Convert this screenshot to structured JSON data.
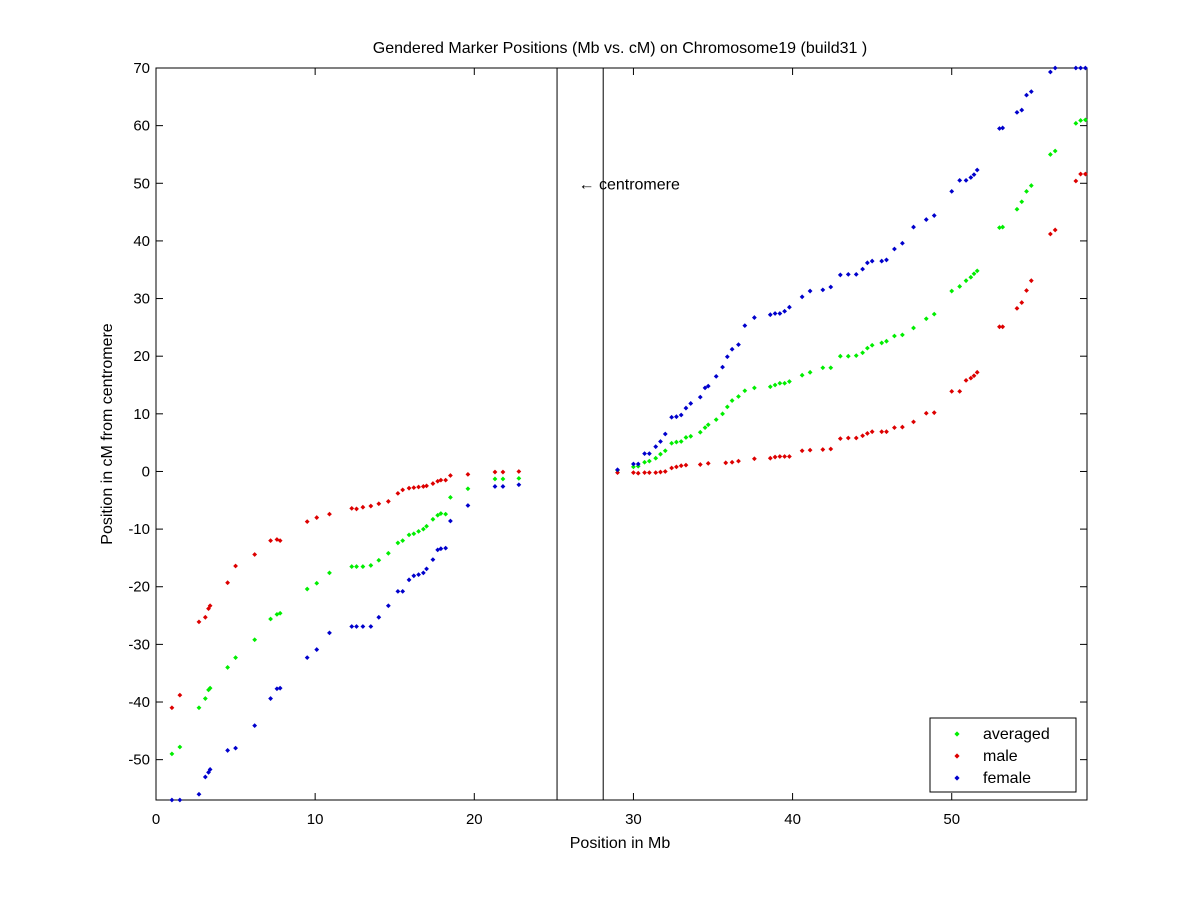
{
  "chart_data": {
    "type": "scatter",
    "title": "Gendered Marker Positions (Mb vs. cM) on Chromosome19 (build31 )",
    "xlabel": "Position in Mb",
    "ylabel": "Position in cM from centromere",
    "xlim": [
      0,
      58.5
    ],
    "ylim": [
      -57,
      70
    ],
    "xticks": [
      0,
      10,
      20,
      30,
      40,
      50
    ],
    "yticks": [
      -50,
      -40,
      -30,
      -20,
      -10,
      0,
      10,
      20,
      30,
      40,
      50,
      60,
      70
    ],
    "grid": false,
    "legend_position": "bottom-right",
    "centromere": {
      "x_start": 25.2,
      "x_end": 28.1,
      "label": "← centromere",
      "label_x": 26.8,
      "label_y": 50
    },
    "series": [
      {
        "name": "averaged",
        "color": "#00ee00",
        "points": [
          [
            1.0,
            -49
          ],
          [
            1.5,
            -47.8
          ],
          [
            2.7,
            -41
          ],
          [
            3.1,
            -39.4
          ],
          [
            3.3,
            -37.9
          ],
          [
            3.4,
            -37.6
          ],
          [
            4.5,
            -34
          ],
          [
            5.0,
            -32.3
          ],
          [
            6.2,
            -29.2
          ],
          [
            7.2,
            -25.6
          ],
          [
            7.6,
            -24.8
          ],
          [
            7.8,
            -24.6
          ],
          [
            9.5,
            -20.4
          ],
          [
            10.1,
            -19.4
          ],
          [
            10.9,
            -17.6
          ],
          [
            12.3,
            -16.5
          ],
          [
            12.6,
            -16.5
          ],
          [
            13.0,
            -16.5
          ],
          [
            13.5,
            -16.3
          ],
          [
            14.0,
            -15.4
          ],
          [
            14.6,
            -14.2
          ],
          [
            15.2,
            -12.4
          ],
          [
            15.5,
            -12.0
          ],
          [
            15.9,
            -11.0
          ],
          [
            16.2,
            -10.8
          ],
          [
            16.5,
            -10.4
          ],
          [
            16.8,
            -10.0
          ],
          [
            17.0,
            -9.5
          ],
          [
            17.4,
            -8.3
          ],
          [
            17.7,
            -7.6
          ],
          [
            17.9,
            -7.3
          ],
          [
            18.2,
            -7.4
          ],
          [
            18.5,
            -4.5
          ],
          [
            19.6,
            -3.0
          ],
          [
            21.3,
            -1.3
          ],
          [
            21.8,
            -1.3
          ],
          [
            22.8,
            -1.2
          ],
          [
            29.0,
            0.2
          ],
          [
            30.0,
            0.8
          ],
          [
            30.3,
            0.9
          ],
          [
            30.7,
            1.6
          ],
          [
            31.0,
            1.8
          ],
          [
            31.4,
            2.3
          ],
          [
            31.7,
            3.0
          ],
          [
            32.0,
            3.6
          ],
          [
            32.4,
            4.9
          ],
          [
            32.7,
            5.1
          ],
          [
            33.0,
            5.2
          ],
          [
            33.3,
            5.9
          ],
          [
            33.6,
            6.1
          ],
          [
            34.2,
            6.8
          ],
          [
            34.5,
            7.6
          ],
          [
            34.7,
            8.1
          ],
          [
            35.2,
            9.0
          ],
          [
            35.6,
            10.0
          ],
          [
            35.9,
            11.2
          ],
          [
            36.2,
            12.3
          ],
          [
            36.6,
            13.0
          ],
          [
            37.0,
            14.0
          ],
          [
            37.6,
            14.5
          ],
          [
            38.6,
            14.7
          ],
          [
            38.9,
            15.0
          ],
          [
            39.2,
            15.3
          ],
          [
            39.5,
            15.3
          ],
          [
            39.8,
            15.6
          ],
          [
            40.6,
            16.7
          ],
          [
            41.1,
            17.2
          ],
          [
            41.9,
            18.0
          ],
          [
            42.4,
            18.0
          ],
          [
            43.0,
            20.0
          ],
          [
            43.5,
            20.0
          ],
          [
            44.0,
            20.1
          ],
          [
            44.4,
            20.6
          ],
          [
            44.7,
            21.4
          ],
          [
            45.0,
            21.9
          ],
          [
            45.6,
            22.3
          ],
          [
            45.9,
            22.6
          ],
          [
            46.4,
            23.5
          ],
          [
            46.9,
            23.7
          ],
          [
            47.6,
            24.9
          ],
          [
            48.4,
            26.5
          ],
          [
            48.9,
            27.3
          ],
          [
            50.0,
            31.3
          ],
          [
            50.5,
            32.1
          ],
          [
            50.9,
            33.1
          ],
          [
            51.2,
            33.7
          ],
          [
            51.4,
            34.3
          ],
          [
            51.6,
            34.8
          ],
          [
            53.0,
            42.3
          ],
          [
            53.2,
            42.4
          ],
          [
            54.1,
            45.5
          ],
          [
            54.4,
            46.8
          ],
          [
            54.7,
            48.6
          ],
          [
            55.0,
            49.6
          ],
          [
            56.2,
            55.0
          ],
          [
            56.5,
            55.6
          ],
          [
            57.8,
            60.4
          ],
          [
            58.1,
            60.9
          ],
          [
            58.4,
            61.0
          ]
        ]
      },
      {
        "name": "male",
        "color": "#dd0000",
        "points": [
          [
            1.0,
            -41
          ],
          [
            1.5,
            -38.8
          ],
          [
            2.7,
            -26.1
          ],
          [
            3.1,
            -25.3
          ],
          [
            3.3,
            -23.8
          ],
          [
            3.4,
            -23.3
          ],
          [
            4.5,
            -19.3
          ],
          [
            5.0,
            -16.4
          ],
          [
            6.2,
            -14.4
          ],
          [
            7.2,
            -12.0
          ],
          [
            7.6,
            -11.8
          ],
          [
            7.8,
            -12.0
          ],
          [
            9.5,
            -8.7
          ],
          [
            10.1,
            -8.0
          ],
          [
            10.9,
            -7.4
          ],
          [
            12.3,
            -6.4
          ],
          [
            12.6,
            -6.5
          ],
          [
            13.0,
            -6.2
          ],
          [
            13.5,
            -6.0
          ],
          [
            14.0,
            -5.6
          ],
          [
            14.6,
            -5.2
          ],
          [
            15.2,
            -3.8
          ],
          [
            15.5,
            -3.2
          ],
          [
            15.9,
            -2.9
          ],
          [
            16.2,
            -2.8
          ],
          [
            16.5,
            -2.7
          ],
          [
            16.8,
            -2.6
          ],
          [
            17.0,
            -2.5
          ],
          [
            17.4,
            -2.1
          ],
          [
            17.7,
            -1.7
          ],
          [
            17.9,
            -1.5
          ],
          [
            18.2,
            -1.5
          ],
          [
            18.5,
            -0.7
          ],
          [
            19.6,
            -0.5
          ],
          [
            21.3,
            -0.1
          ],
          [
            21.8,
            -0.1
          ],
          [
            22.8,
            0.0
          ],
          [
            29.0,
            -0.2
          ],
          [
            30.0,
            -0.2
          ],
          [
            30.3,
            -0.3
          ],
          [
            30.7,
            -0.2
          ],
          [
            31.0,
            -0.2
          ],
          [
            31.4,
            -0.2
          ],
          [
            31.7,
            -0.1
          ],
          [
            32.0,
            0.0
          ],
          [
            32.4,
            0.6
          ],
          [
            32.7,
            0.8
          ],
          [
            33.0,
            1.0
          ],
          [
            33.3,
            1.1
          ],
          [
            34.2,
            1.2
          ],
          [
            34.7,
            1.4
          ],
          [
            35.8,
            1.5
          ],
          [
            36.2,
            1.6
          ],
          [
            36.6,
            1.8
          ],
          [
            37.6,
            2.2
          ],
          [
            38.6,
            2.3
          ],
          [
            38.9,
            2.5
          ],
          [
            39.2,
            2.6
          ],
          [
            39.5,
            2.6
          ],
          [
            39.8,
            2.6
          ],
          [
            40.6,
            3.6
          ],
          [
            41.1,
            3.7
          ],
          [
            41.9,
            3.8
          ],
          [
            42.4,
            3.9
          ],
          [
            43.0,
            5.7
          ],
          [
            43.5,
            5.8
          ],
          [
            44.0,
            5.8
          ],
          [
            44.4,
            6.2
          ],
          [
            44.7,
            6.6
          ],
          [
            45.0,
            6.9
          ],
          [
            45.6,
            6.9
          ],
          [
            45.9,
            6.9
          ],
          [
            46.4,
            7.6
          ],
          [
            46.9,
            7.7
          ],
          [
            47.6,
            8.6
          ],
          [
            48.4,
            10.1
          ],
          [
            48.9,
            10.2
          ],
          [
            50.0,
            13.9
          ],
          [
            50.5,
            13.9
          ],
          [
            50.9,
            15.8
          ],
          [
            51.2,
            16.2
          ],
          [
            51.4,
            16.6
          ],
          [
            51.6,
            17.2
          ],
          [
            53.0,
            25.1
          ],
          [
            53.2,
            25.1
          ],
          [
            54.1,
            28.3
          ],
          [
            54.4,
            29.3
          ],
          [
            54.7,
            31.4
          ],
          [
            55.0,
            33.1
          ],
          [
            56.2,
            41.2
          ],
          [
            56.5,
            41.9
          ],
          [
            57.8,
            50.4
          ],
          [
            58.1,
            51.6
          ],
          [
            58.4,
            51.6
          ]
        ]
      },
      {
        "name": "female",
        "color": "#0000cc",
        "points": [
          [
            1.0,
            -57
          ],
          [
            1.5,
            -57
          ],
          [
            2.7,
            -56
          ],
          [
            3.1,
            -53
          ],
          [
            3.3,
            -52.2
          ],
          [
            3.4,
            -51.7
          ],
          [
            4.5,
            -48.4
          ],
          [
            5.0,
            -48
          ],
          [
            6.2,
            -44.1
          ],
          [
            7.2,
            -39.4
          ],
          [
            7.6,
            -37.7
          ],
          [
            7.8,
            -37.6
          ],
          [
            9.5,
            -32.3
          ],
          [
            10.1,
            -30.9
          ],
          [
            10.9,
            -28
          ],
          [
            12.3,
            -26.9
          ],
          [
            12.6,
            -26.9
          ],
          [
            13.0,
            -26.9
          ],
          [
            13.5,
            -26.9
          ],
          [
            14.0,
            -25.3
          ],
          [
            14.6,
            -23.3
          ],
          [
            15.2,
            -20.8
          ],
          [
            15.5,
            -20.8
          ],
          [
            15.9,
            -18.8
          ],
          [
            16.2,
            -18.1
          ],
          [
            16.5,
            -17.9
          ],
          [
            16.8,
            -17.6
          ],
          [
            17.0,
            -16.9
          ],
          [
            17.4,
            -15.3
          ],
          [
            17.7,
            -13.6
          ],
          [
            17.9,
            -13.4
          ],
          [
            18.2,
            -13.3
          ],
          [
            18.5,
            -8.6
          ],
          [
            19.6,
            -5.9
          ],
          [
            21.3,
            -2.6
          ],
          [
            21.8,
            -2.6
          ],
          [
            22.8,
            -2.3
          ],
          [
            29.0,
            0.3
          ],
          [
            30.0,
            1.3
          ],
          [
            30.3,
            1.3
          ],
          [
            30.7,
            3.1
          ],
          [
            31.0,
            3.1
          ],
          [
            31.4,
            4.3
          ],
          [
            31.7,
            5.2
          ],
          [
            32.0,
            6.5
          ],
          [
            32.4,
            9.4
          ],
          [
            32.7,
            9.5
          ],
          [
            33.0,
            9.8
          ],
          [
            33.3,
            11.0
          ],
          [
            33.6,
            11.8
          ],
          [
            34.2,
            12.9
          ],
          [
            34.5,
            14.5
          ],
          [
            34.7,
            14.8
          ],
          [
            35.2,
            16.5
          ],
          [
            35.6,
            18.1
          ],
          [
            35.9,
            19.9
          ],
          [
            36.2,
            21.2
          ],
          [
            36.6,
            22.0
          ],
          [
            37.0,
            25.3
          ],
          [
            37.6,
            26.7
          ],
          [
            38.6,
            27.2
          ],
          [
            38.9,
            27.4
          ],
          [
            39.2,
            27.4
          ],
          [
            39.5,
            27.8
          ],
          [
            39.8,
            28.5
          ],
          [
            40.6,
            30.3
          ],
          [
            41.1,
            31.3
          ],
          [
            41.9,
            31.5
          ],
          [
            42.4,
            32.0
          ],
          [
            43.0,
            34.1
          ],
          [
            43.5,
            34.2
          ],
          [
            44.0,
            34.2
          ],
          [
            44.4,
            35.1
          ],
          [
            44.7,
            36.2
          ],
          [
            45.0,
            36.5
          ],
          [
            45.6,
            36.5
          ],
          [
            45.9,
            36.7
          ],
          [
            46.4,
            38.6
          ],
          [
            46.9,
            39.6
          ],
          [
            47.6,
            42.4
          ],
          [
            48.4,
            43.7
          ],
          [
            48.9,
            44.4
          ],
          [
            50.0,
            48.6
          ],
          [
            50.5,
            50.5
          ],
          [
            50.9,
            50.5
          ],
          [
            51.2,
            51.0
          ],
          [
            51.4,
            51.5
          ],
          [
            51.6,
            52.3
          ],
          [
            53.0,
            59.5
          ],
          [
            53.2,
            59.6
          ],
          [
            54.1,
            62.3
          ],
          [
            54.4,
            62.7
          ],
          [
            54.7,
            65.3
          ],
          [
            55.0,
            65.9
          ],
          [
            56.2,
            69.3
          ],
          [
            56.5,
            70.0
          ],
          [
            57.8,
            70.0
          ],
          [
            58.1,
            70.0
          ],
          [
            58.4,
            70.0
          ]
        ]
      }
    ]
  }
}
